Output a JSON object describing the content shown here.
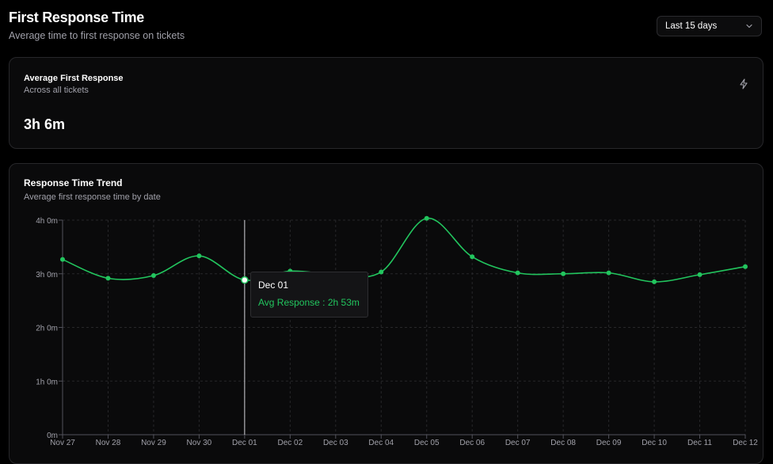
{
  "header": {
    "title": "First Response Time",
    "subtitle": "Average time to first response on tickets"
  },
  "range_select": {
    "selected": "Last 15 days",
    "icon": "chevron-down-icon"
  },
  "kpi": {
    "title": "Average First Response",
    "subtitle": "Across all tickets",
    "value": "3h 6m",
    "icon": "lightning-icon"
  },
  "trend": {
    "title": "Response Time Trend",
    "subtitle": "Average first response time by date"
  },
  "tooltip": {
    "date": "Dec 01",
    "label": "Avg Response",
    "value": "2h 53m"
  },
  "colors": {
    "line": "#22c55e",
    "background": "#000000",
    "card": "#0a0a0b"
  },
  "chart_data": {
    "type": "line",
    "title": "Response Time Trend",
    "x": [
      "Nov 27",
      "Nov 28",
      "Nov 29",
      "Nov 30",
      "Dec 01",
      "Dec 02",
      "Dec 03",
      "Dec 04",
      "Dec 05",
      "Dec 06",
      "Dec 07",
      "Dec 08",
      "Dec 09",
      "Dec 10",
      "Dec 11",
      "Dec 12"
    ],
    "series": [
      {
        "values": [
          196,
          175,
          178,
          200,
          173,
          183,
          179,
          182,
          242,
          199,
          181,
          180,
          181,
          171,
          179,
          188
        ]
      }
    ],
    "ytick_values": [
      0,
      60,
      120,
      180,
      240
    ],
    "ytick_labels": [
      "0m",
      "1h 0m",
      "2h 0m",
      "3h 0m",
      "4h 0m"
    ],
    "ylim": [
      0,
      240
    ],
    "grid": true,
    "active_point": "Dec 01"
  }
}
